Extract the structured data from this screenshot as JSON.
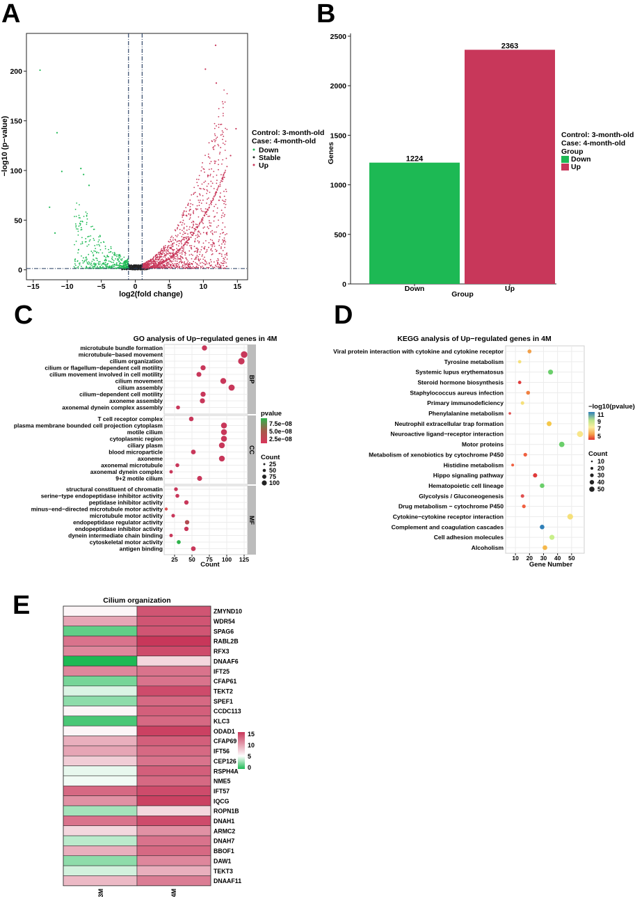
{
  "colors": {
    "down": "#1db954",
    "stable": "#222222",
    "up": "#c8375a",
    "strip": "#bcbcbc",
    "grid": "#ebebeb",
    "panel_border": "#555555"
  },
  "panel_letters": [
    "A",
    "B",
    "C",
    "D",
    "E"
  ],
  "chart_data": [
    {
      "type": "scatter",
      "panel": "A",
      "xlabel": "log2(fold change)",
      "ylabel": "−log10 (p−value)",
      "xlim": [
        -16,
        16.5
      ],
      "ylim": [
        -10,
        238
      ],
      "xticks": [
        -15,
        -10,
        -5,
        0,
        5,
        10,
        15
      ],
      "yticks": [
        0,
        50,
        100,
        150,
        200
      ],
      "thresholds": {
        "fc": [
          -1,
          1
        ],
        "p": 1.3
      },
      "legend": {
        "lines": [
          "Control: 3-month-old",
          "Case: 4-month-old"
        ],
        "entries": [
          {
            "label": "Down",
            "color": "#1db954"
          },
          {
            "label": "Stable",
            "color": "#222222"
          },
          {
            "label": "Up",
            "color": "#c8375a"
          }
        ]
      },
      "highlight_points": [
        {
          "x": -14.0,
          "y": 201,
          "g": "down"
        },
        {
          "x": -11.5,
          "y": 138,
          "g": "down"
        },
        {
          "x": -10.8,
          "y": 99,
          "g": "down"
        },
        {
          "x": -8,
          "y": 102,
          "g": "down"
        },
        {
          "x": -12.6,
          "y": 63,
          "g": "down"
        },
        {
          "x": -11.8,
          "y": 37,
          "g": "down"
        },
        {
          "x": -7.6,
          "y": 96,
          "g": "down"
        },
        {
          "x": -6.8,
          "y": 85,
          "g": "down"
        },
        {
          "x": 11.8,
          "y": 226,
          "g": "up"
        },
        {
          "x": 10.3,
          "y": 202,
          "g": "up"
        },
        {
          "x": 11.9,
          "y": 188,
          "g": "up"
        },
        {
          "x": 14.8,
          "y": 142,
          "g": "up"
        },
        {
          "x": 14.0,
          "y": 115,
          "g": "up"
        },
        {
          "x": 10.7,
          "y": 95,
          "g": "up"
        },
        {
          "x": 12.3,
          "y": 70,
          "g": "up"
        }
      ]
    },
    {
      "type": "bar",
      "panel": "B",
      "title": "",
      "categories": [
        "Down",
        "Up"
      ],
      "values": [
        1224,
        2363
      ],
      "colors": [
        "#1db954",
        "#c8375a"
      ],
      "xlabel": "Group",
      "ylabel": "Genes",
      "ylim": [
        0,
        2500
      ],
      "yticks": [
        0,
        500,
        1000,
        1500,
        2000,
        2500
      ],
      "legend": {
        "lines": [
          "Control: 3-month-old",
          "Case: 4-month-old",
          "Group"
        ],
        "entries": [
          {
            "label": "Down",
            "color": "#1db954"
          },
          {
            "label": "Up",
            "color": "#c8375a"
          }
        ]
      }
    },
    {
      "type": "scatter",
      "panel": "C",
      "title": "GO analysis of Up−regulated genes in 4M",
      "xlabel": "Count",
      "xlim": [
        10,
        130
      ],
      "xticks": [
        25,
        50,
        75,
        100,
        125
      ],
      "legend_color_title": "pvalue",
      "legend_color_labels": [
        "7.5e−08",
        "5.0e−08",
        "2.5e−08"
      ],
      "legend_size_title": "Count",
      "legend_size_labels": [
        "25",
        "50",
        "75",
        "100"
      ],
      "facets": [
        {
          "name": "BP",
          "terms": [
            {
              "term": "microtubule bundle formation",
              "count": 68,
              "color": "#c8375a"
            },
            {
              "term": "microtubule−based movement",
              "count": 125,
              "color": "#c8375a"
            },
            {
              "term": "cilium organization",
              "count": 121,
              "color": "#c8375a"
            },
            {
              "term": "cilium or flagellum−dependent cell motility",
              "count": 66,
              "color": "#c8375a"
            },
            {
              "term": "cilium movement involved in cell motility",
              "count": 60,
              "color": "#c8375a"
            },
            {
              "term": "cilium movement",
              "count": 95,
              "color": "#c8375a"
            },
            {
              "term": "cilium assembly",
              "count": 107,
              "color": "#c8375a"
            },
            {
              "term": "cilium−dependent cell motility",
              "count": 66,
              "color": "#c8375a"
            },
            {
              "term": "axoneme assembly",
              "count": 65,
              "color": "#c8375a"
            },
            {
              "term": "axonemal dynein complex assembly",
              "count": 30,
              "color": "#c8375a"
            }
          ]
        },
        {
          "name": "CC",
          "terms": [
            {
              "term": "T cell receptor complex",
              "count": 49,
              "color": "#c8375a"
            },
            {
              "term": "plasma membrane bounded cell projection cytoplasm",
              "count": 96,
              "color": "#c8375a"
            },
            {
              "term": "motile cilium",
              "count": 96,
              "color": "#c8375a"
            },
            {
              "term": "cytoplasmic region",
              "count": 96,
              "color": "#c8375a"
            },
            {
              "term": "ciliary plasm",
              "count": 93,
              "color": "#c8375a"
            },
            {
              "term": "blood microparticle",
              "count": 52,
              "color": "#c8375a"
            },
            {
              "term": "axoneme",
              "count": 93,
              "color": "#c8375a"
            },
            {
              "term": "axonemal microtubule",
              "count": 29,
              "color": "#c8375a"
            },
            {
              "term": "axonemal dynein complex",
              "count": 20,
              "color": "#c8375a"
            },
            {
              "term": "9+2 motile cilium",
              "count": 61,
              "color": "#c8375a"
            }
          ]
        },
        {
          "name": "MF",
          "terms": [
            {
              "term": "structural constituent of chromatin",
              "count": 27,
              "color": "#c8375a"
            },
            {
              "term": "serine−type endopeptidase inhibitor activity",
              "count": 29,
              "color": "#c8375a"
            },
            {
              "term": "peptidase inhibitor activity",
              "count": 42,
              "color": "#c8375a"
            },
            {
              "term": "minus−end−directed microtubule motor activity",
              "count": 13,
              "color": "#e05252"
            },
            {
              "term": "microtubule motor activity",
              "count": 23,
              "color": "#c8375a"
            },
            {
              "term": "endopeptidase regulator activity",
              "count": 43,
              "color": "#b04a50"
            },
            {
              "term": "endopeptidase inhibitor activity",
              "count": 42,
              "color": "#c8375a"
            },
            {
              "term": "dynein intermediate chain binding",
              "count": 20,
              "color": "#c8375a"
            },
            {
              "term": "cytoskeletal motor activity",
              "count": 31,
              "color": "#2db34a"
            },
            {
              "term": "antigen binding",
              "count": 52,
              "color": "#c8375a"
            }
          ]
        }
      ]
    },
    {
      "type": "scatter",
      "panel": "D",
      "title": "KEGG analysis of Up−regulated genes in 4M",
      "xlabel": "Gene Number",
      "xlim": [
        3,
        59
      ],
      "xticks": [
        10,
        20,
        30,
        40,
        50
      ],
      "legend_color_title": "−log10(pvalue)",
      "legend_color_labels": [
        "11",
        "9",
        "7",
        "5"
      ],
      "legend_size_title": "Count",
      "legend_size_labels": [
        "10",
        "20",
        "30",
        "40",
        "50"
      ],
      "terms": [
        {
          "term": "Viral protein interaction with cytokine and cytokine receptor",
          "count": 20,
          "color": "#f2a04a"
        },
        {
          "term": "Tyrosine metabolism",
          "count": 13,
          "color": "#f5e07a"
        },
        {
          "term": "Systemic lupus erythematosus",
          "count": 35,
          "color": "#6bcf6b"
        },
        {
          "term": "Steroid hormone biosynthesis",
          "count": 13,
          "color": "#e03a3a"
        },
        {
          "term": "Staphylococcus aureus infection",
          "count": 19,
          "color": "#f08040"
        },
        {
          "term": "Primary immunodeficiency",
          "count": 15,
          "color": "#f5e07a"
        },
        {
          "term": "Phenylalanine metabolism",
          "count": 6,
          "color": "#e05050"
        },
        {
          "term": "Neutrophil extracellular trap formation",
          "count": 34,
          "color": "#f5c84a"
        },
        {
          "term": "Neuroactive ligand−receptor interaction",
          "count": 56,
          "color": "#f8e68a"
        },
        {
          "term": "Motor proteins",
          "count": 43,
          "color": "#6bcf6b"
        },
        {
          "term": "Metabolism of xenobiotics by cytochrome P450",
          "count": 17,
          "color": "#f06040"
        },
        {
          "term": "Histidine metabolism",
          "count": 8,
          "color": "#f06040"
        },
        {
          "term": "Hippo signaling pathway",
          "count": 24,
          "color": "#e03a3a"
        },
        {
          "term": "Hematopoietic cell lineage",
          "count": 29,
          "color": "#6bcf6b"
        },
        {
          "term": "Glycolysis / Gluconeogenesis",
          "count": 15,
          "color": "#e05050"
        },
        {
          "term": "Drug metabolism − cytochrome P450",
          "count": 16,
          "color": "#f06040"
        },
        {
          "term": "Cytokine−cytokine receptor interaction",
          "count": 49,
          "color": "#f5e07a"
        },
        {
          "term": "Complement and coagulation cascades",
          "count": 29,
          "color": "#2f7fb8"
        },
        {
          "term": "Cell adhesion molecules",
          "count": 36,
          "color": "#c8ef8a"
        },
        {
          "term": "Alcoholism",
          "count": 31,
          "color": "#f5b84a"
        }
      ]
    },
    {
      "type": "heatmap",
      "panel": "E",
      "title": "Cilium organization",
      "columns": [
        "3M",
        "4M"
      ],
      "legend_labels": [
        "15",
        "10",
        "5",
        "0"
      ],
      "rows": [
        {
          "gene": "ZMYND10",
          "values": [
            5.5,
            13.5
          ]
        },
        {
          "gene": "WDR54",
          "values": [
            9.5,
            13.5
          ]
        },
        {
          "gene": "SPAG6",
          "values": [
            1.5,
            13.5
          ]
        },
        {
          "gene": "RABL2B",
          "values": [
            12.0,
            15.0
          ]
        },
        {
          "gene": "RFX3",
          "values": [
            11.0,
            14.0
          ]
        },
        {
          "gene": "DNAAF6",
          "values": [
            0.0,
            7.0
          ]
        },
        {
          "gene": "IFT25",
          "values": [
            11.0,
            12.0
          ]
        },
        {
          "gene": "CFAP61",
          "values": [
            2.0,
            12.0
          ]
        },
        {
          "gene": "TEKT2",
          "values": [
            4.2,
            14.0
          ]
        },
        {
          "gene": "SPEF1",
          "values": [
            2.5,
            12.5
          ]
        },
        {
          "gene": "CCDC113",
          "values": [
            5.5,
            13.0
          ]
        },
        {
          "gene": "KLC3",
          "values": [
            1.0,
            12.5
          ]
        },
        {
          "gene": "ODAD1",
          "values": [
            5.5,
            14.5
          ]
        },
        {
          "gene": "CFAP69",
          "values": [
            9.0,
            13.0
          ]
        },
        {
          "gene": "IFT56",
          "values": [
            9.5,
            12.5
          ]
        },
        {
          "gene": "CEP126",
          "values": [
            7.5,
            12.0
          ]
        },
        {
          "gene": "RSPH4A",
          "values": [
            4.5,
            13.0
          ]
        },
        {
          "gene": "NME5",
          "values": [
            4.7,
            12.5
          ]
        },
        {
          "gene": "IFT57",
          "values": [
            12.5,
            14.0
          ]
        },
        {
          "gene": "IQCG",
          "values": [
            10.5,
            14.5
          ]
        },
        {
          "gene": "ROPN1B",
          "values": [
            3.0,
            7.0
          ]
        },
        {
          "gene": "DNAH1",
          "values": [
            12.0,
            14.0
          ]
        },
        {
          "gene": "ARMC2",
          "values": [
            7.0,
            10.5
          ]
        },
        {
          "gene": "DNAH7",
          "values": [
            3.5,
            12.0
          ]
        },
        {
          "gene": "BBOF1",
          "values": [
            9.0,
            12.5
          ]
        },
        {
          "gene": "DAW1",
          "values": [
            2.5,
            11.0
          ]
        },
        {
          "gene": "TEKT3",
          "values": [
            4.0,
            9.0
          ]
        },
        {
          "gene": "DNAAF11",
          "values": [
            8.5,
            11.5
          ]
        }
      ]
    }
  ]
}
